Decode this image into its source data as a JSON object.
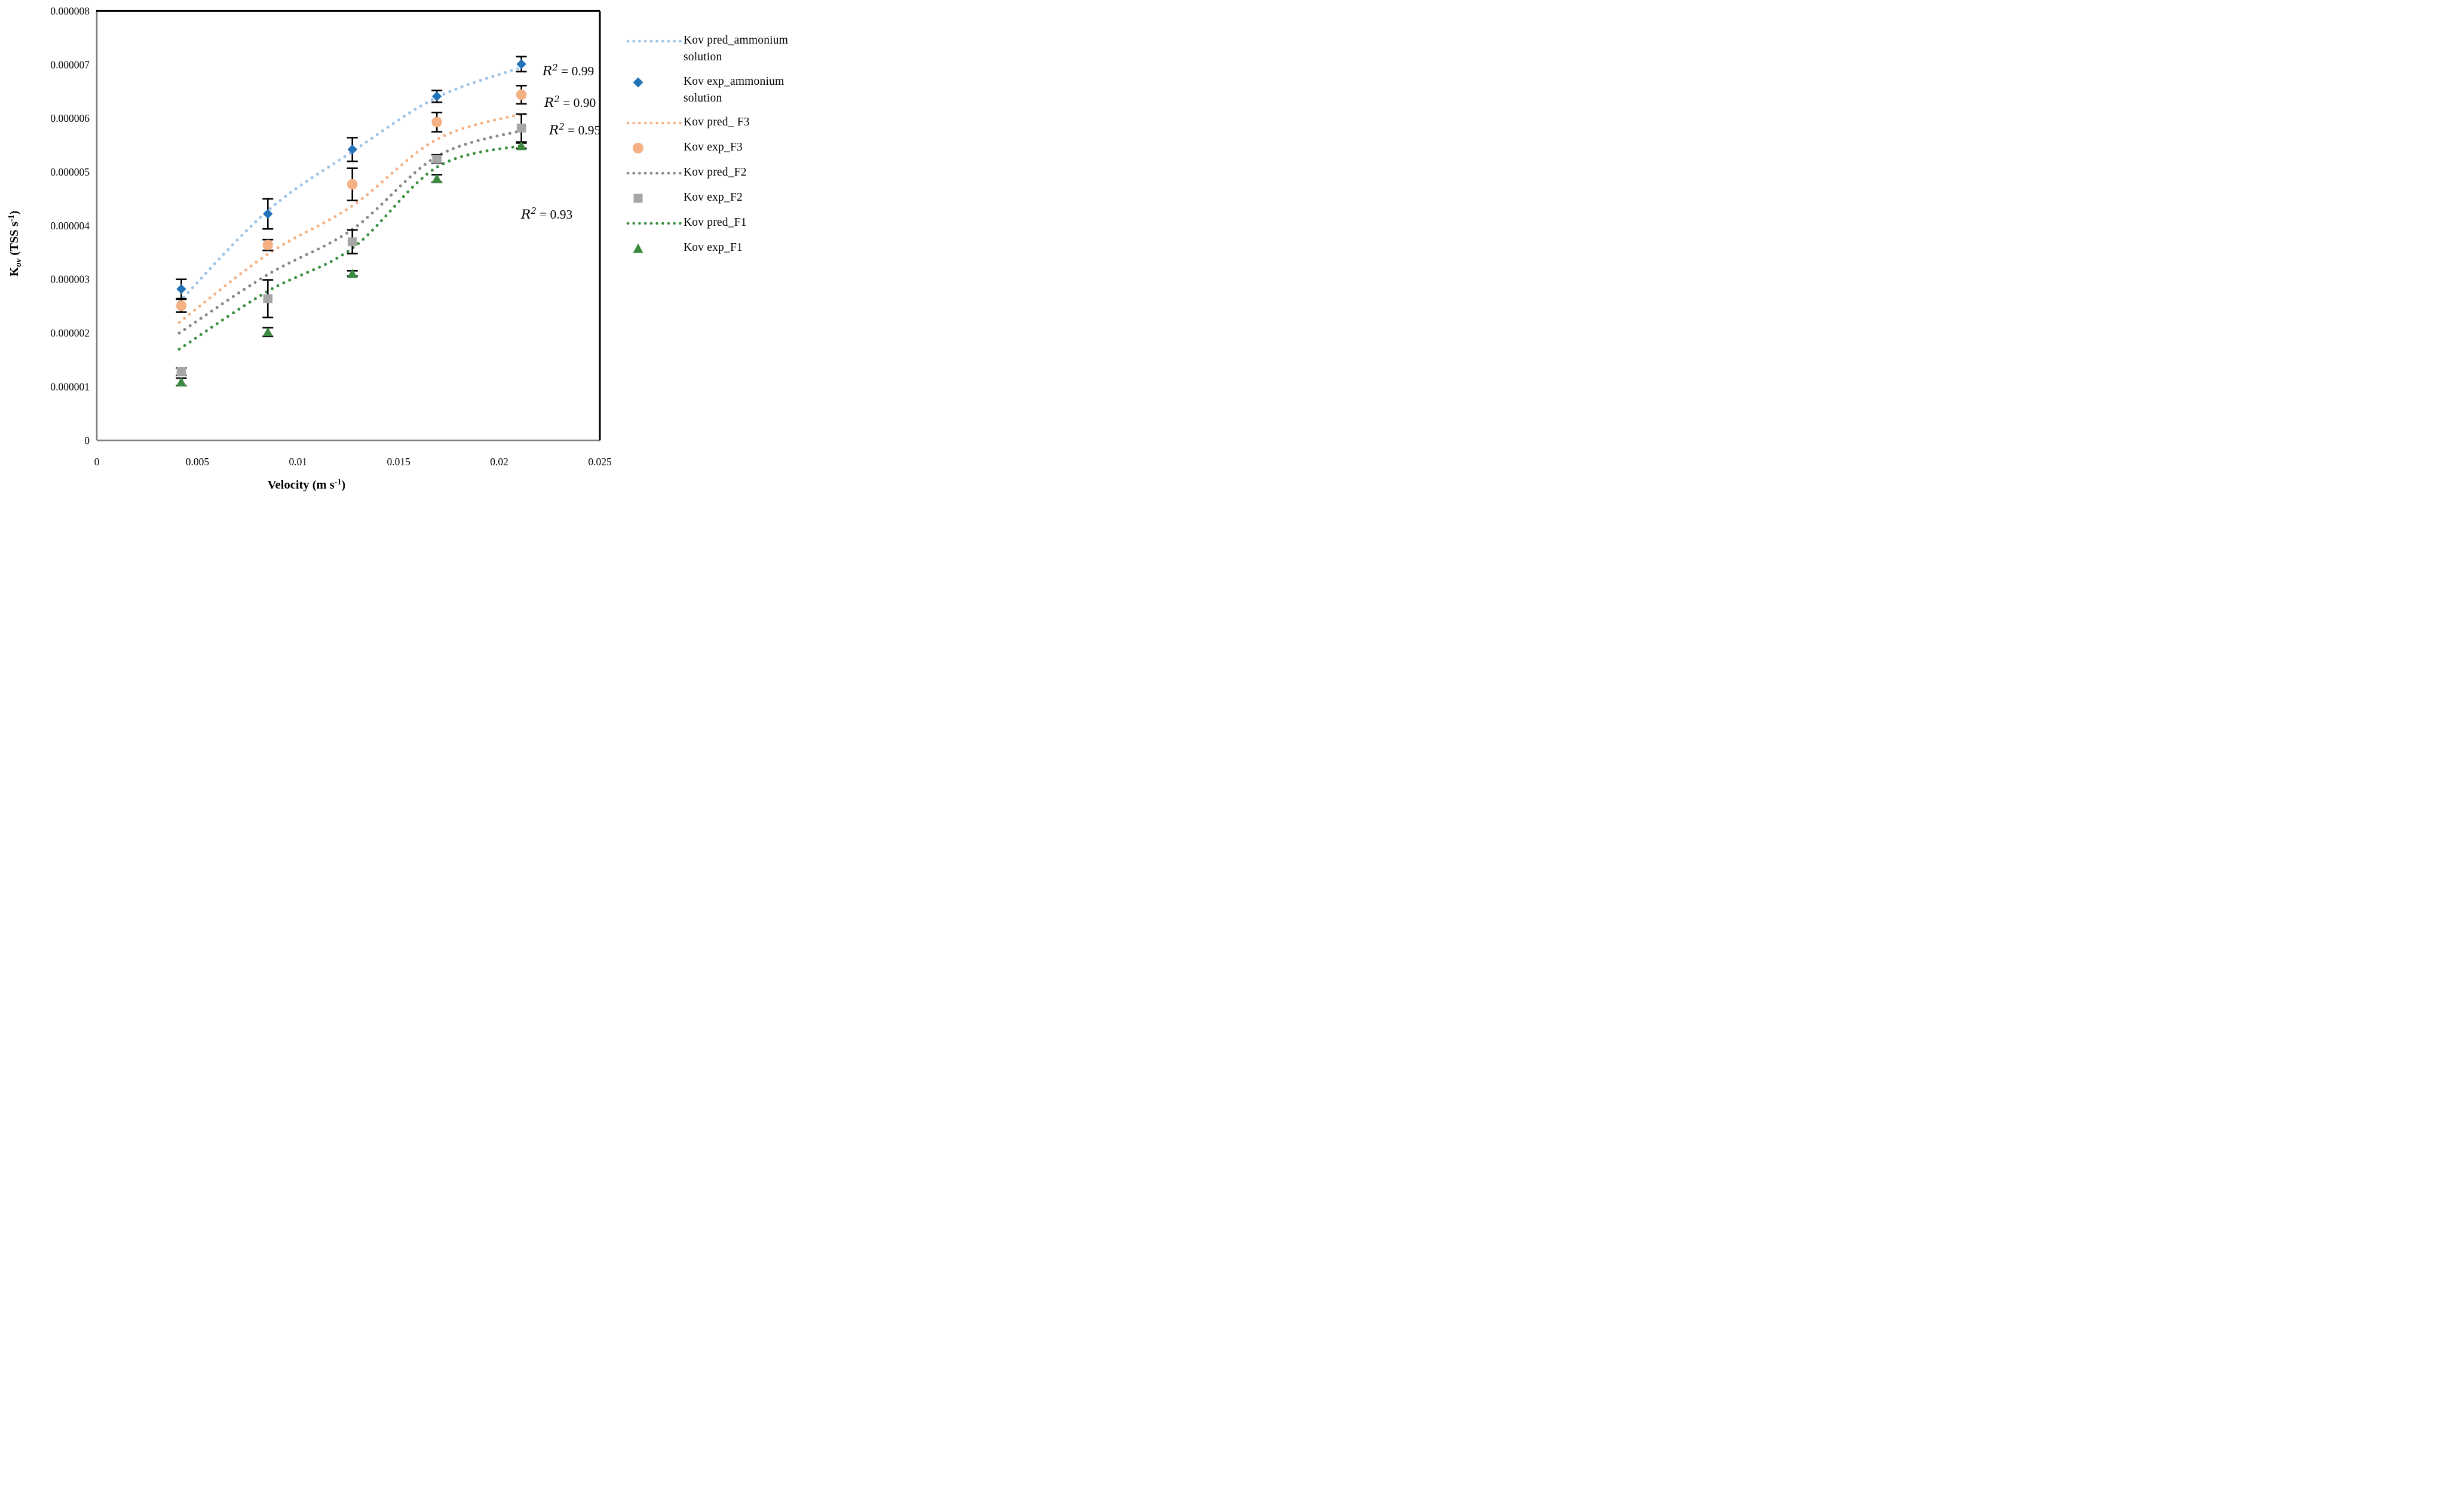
{
  "chart_data": {
    "type": "scatter",
    "title": "",
    "xlabel_parts": {
      "main": "Velocity (m s",
      "sup": "-1",
      "close": ")"
    },
    "ylabel_parts": {
      "k": "K",
      "sub": "ov",
      "mid": "  (TSS s",
      "sup": "-1",
      "close": ")"
    },
    "x_range": [
      0,
      0.025
    ],
    "y_range": [
      0,
      8e-06
    ],
    "x_tick_labels": [
      "0",
      "0.005",
      "0.01",
      "0.015",
      "0.02",
      "0.025"
    ],
    "x_ticks": [
      0,
      0.005,
      0.01,
      0.015,
      0.02,
      0.025
    ],
    "y_tick_labels": [
      "0",
      "0.000001",
      "0.000002",
      "0.000003",
      "0.000004",
      "0.000005",
      "0.000006",
      "0.000007",
      "0.000008"
    ],
    "y_ticks": [
      0,
      1e-06,
      2e-06,
      3e-06,
      4e-06,
      5e-06,
      6e-06,
      7e-06,
      8e-06
    ],
    "grid": false,
    "legend_position": "right",
    "x_values": [
      0.0042,
      0.0085,
      0.0127,
      0.0169,
      0.0211
    ],
    "pred_x_values": [
      0.0041,
      0.0085,
      0.0127,
      0.0169,
      0.0212
    ],
    "series": [
      {
        "id": "pred_ammonium",
        "name": "Kov pred_ammonium solution",
        "kind": "dotted-line",
        "color": "#9DC3E6",
        "y": [
          2.58e-06,
          4.28e-06,
          5.38e-06,
          6.39e-06,
          6.96e-06
        ],
        "r_squared": "0.99"
      },
      {
        "id": "exp_ammonium",
        "name": "Kov exp_ammonium solution",
        "kind": "scatter",
        "marker": "diamond",
        "color": "#2272B8",
        "y": [
          2.82e-06,
          4.22e-06,
          5.42e-06,
          6.41e-06,
          7.01e-06
        ],
        "yerr": [
          1.8e-07,
          2.8e-07,
          2.2e-07,
          1.1e-07,
          1.4e-07
        ]
      },
      {
        "id": "pred_F3",
        "name": "Kov pred_ F3",
        "kind": "dotted-line",
        "color": "#F4B183",
        "y": [
          2.2e-06,
          3.47e-06,
          4.37e-06,
          5.61e-06,
          6.09e-06
        ],
        "r_squared": "0.90"
      },
      {
        "id": "exp_F3",
        "name": "Kov exp_F3",
        "kind": "scatter",
        "marker": "circle",
        "color": "#F4B183",
        "y": [
          2.51e-06,
          3.64e-06,
          4.77e-06,
          5.93e-06,
          6.44e-06
        ],
        "yerr": [
          1.2e-07,
          1e-07,
          3e-07,
          1.8e-07,
          1.7e-07
        ]
      },
      {
        "id": "pred_F2",
        "name": "Kov pred_F2",
        "kind": "dotted-line",
        "color": "#898989",
        "y": [
          2e-06,
          3.09e-06,
          3.93e-06,
          5.29e-06,
          5.78e-06
        ],
        "r_squared": "0.95"
      },
      {
        "id": "exp_F2",
        "name": "Kov exp_F2",
        "kind": "scatter",
        "marker": "square",
        "color": "#A6A6A6",
        "y": [
          1.28e-06,
          2.64e-06,
          3.7e-06,
          5.24e-06,
          5.82e-06
        ],
        "yerr": [
          7e-08,
          3.5e-07,
          2.2e-07,
          8e-08,
          2.6e-07
        ]
      },
      {
        "id": "pred_F1",
        "name": "Kov pred_F1",
        "kind": "dotted-line",
        "color": "#3F9142",
        "y": [
          1.7e-06,
          2.78e-06,
          3.58e-06,
          5.09e-06,
          5.5e-06
        ],
        "r_squared": "0.93"
      },
      {
        "id": "exp_F1",
        "name": "Kov exp_F1",
        "kind": "scatter",
        "marker": "triangle",
        "color": "#3C8A3F",
        "y": [
          1.09e-06,
          2.02e-06,
          3.11e-06,
          4.88e-06,
          5.49e-06
        ],
        "yerr": [
          7e-08,
          8e-08,
          5e-08,
          7e-08,
          5e-08
        ]
      }
    ],
    "annotations": [
      {
        "base": "R",
        "sup": "2",
        "rest": " = 0.99",
        "x": 908,
        "y": 126
      },
      {
        "base": "R",
        "sup": "2",
        "rest": " = 0.90",
        "x": 911,
        "y": 179
      },
      {
        "base": "R",
        "sup": "2",
        "rest": " = 0.95",
        "x": 919,
        "y": 225
      },
      {
        "base": "R",
        "sup": "2",
        "rest": " = 0.93",
        "x": 872,
        "y": 366
      }
    ],
    "legend": [
      {
        "label": "Kov pred_ammonium solution",
        "sym": "dotted",
        "color": "#9DC3E6"
      },
      {
        "label": "Kov exp_ammonium solution",
        "sym": "diamond",
        "color": "#2272B8"
      },
      {
        "label": "Kov pred_ F3",
        "sym": "dotted",
        "color": "#F4B183"
      },
      {
        "label": "Kov exp_F3",
        "sym": "circle",
        "color": "#F4B183"
      },
      {
        "label": "Kov pred_F2",
        "sym": "dotted",
        "color": "#898989"
      },
      {
        "label": "Kov exp_F2",
        "sym": "square",
        "color": "#A6A6A6"
      },
      {
        "label": "Kov pred_F1",
        "sym": "dotted",
        "color": "#3F9142"
      },
      {
        "label": "Kov exp_F1",
        "sym": "triangle",
        "color": "#3C8A3F"
      }
    ],
    "plot_border": {
      "left_bottom_color": "#808080",
      "top_right_color": "#000000"
    }
  }
}
